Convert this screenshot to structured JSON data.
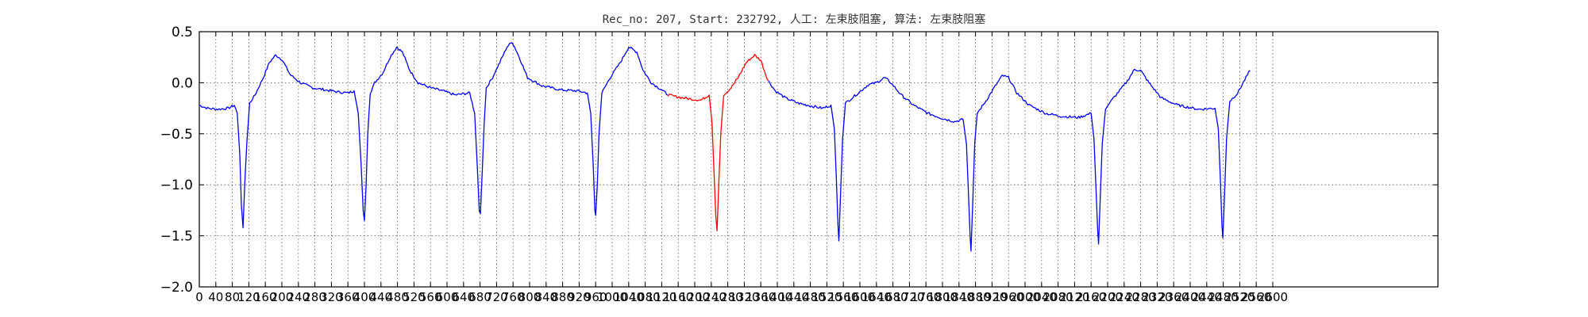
{
  "chart_data": {
    "type": "line",
    "title": "Rec_no: 207, Start: 232792, 人工: 左束肢阻塞, 算法: 左束肢阻塞",
    "xlabel": "",
    "ylabel": "",
    "xlim": [
      0,
      3000
    ],
    "ylim": [
      -2.0,
      0.5
    ],
    "grid": true,
    "x_ticks": [
      0,
      40,
      80,
      120,
      160,
      200,
      240,
      280,
      320,
      360,
      400,
      440,
      480,
      520,
      560,
      600,
      640,
      680,
      720,
      760,
      800,
      840,
      880,
      920,
      960,
      1000,
      1040,
      1080,
      1120,
      1160,
      1200,
      1240,
      1280,
      1320,
      1360,
      1400,
      1440,
      1480,
      1520,
      1560,
      1600,
      1640,
      1680,
      1720,
      1760,
      1800,
      1840,
      1880,
      1920,
      1960,
      2000,
      2040,
      2080,
      2120,
      2160,
      2200,
      2240,
      2280,
      2320,
      2360,
      2400,
      2440,
      2480,
      2520,
      2560,
      2600
    ],
    "x_tick_labels": [
      "0",
      "40",
      "80",
      "120",
      "160",
      "200",
      "240",
      "280",
      "320",
      "360",
      "400",
      "440",
      "480",
      "520",
      "560",
      "600",
      "640",
      "680",
      "720",
      "760",
      "800",
      "840",
      "880",
      "920",
      "960",
      "1000",
      "1040",
      "1080",
      "1120",
      "1160",
      "1200",
      "1240",
      "1280",
      "1320",
      "1360",
      "1400",
      "1440",
      "1480",
      "1520",
      "1560",
      "1600",
      "1640",
      "1680",
      "1720",
      "1760",
      "1800",
      "1840",
      "1880",
      "1920",
      "1960",
      "2000",
      "2040",
      "2080",
      "2120",
      "2160",
      "2200",
      "2240",
      "2280",
      "2320",
      "2360",
      "2400",
      "2440",
      "2480",
      "2520",
      "2560",
      "2600"
    ],
    "y_ticks": [
      0.5,
      0.0,
      -0.5,
      -1.0,
      -1.5,
      -2.0
    ],
    "y_tick_labels": [
      "0.5",
      "0.0",
      "−0.5",
      "−1.0",
      "−1.5",
      "−2.0"
    ],
    "series": [
      {
        "color": "#0000ff",
        "segments": [
          [
            [
              0,
              -0.22
            ],
            [
              20,
              -0.25
            ],
            [
              45,
              -0.26
            ],
            [
              70,
              -0.25
            ],
            [
              85,
              -0.22
            ],
            [
              92,
              -0.3
            ],
            [
              98,
              -0.7
            ],
            [
              102,
              -1.2
            ],
            [
              106,
              -1.42
            ],
            [
              110,
              -1.0
            ],
            [
              115,
              -0.6
            ],
            [
              122,
              -0.2
            ],
            [
              135,
              -0.12
            ],
            [
              155,
              0.05
            ],
            [
              170,
              0.2
            ],
            [
              185,
              0.27
            ],
            [
              200,
              0.23
            ],
            [
              220,
              0.08
            ],
            [
              245,
              0.0
            ],
            [
              275,
              -0.05
            ],
            [
              305,
              -0.07
            ],
            [
              335,
              -0.09
            ],
            [
              360,
              -0.1
            ],
            [
              375,
              -0.08
            ],
            [
              385,
              -0.3
            ],
            [
              392,
              -0.8
            ],
            [
              397,
              -1.25
            ],
            [
              400,
              -1.35
            ],
            [
              404,
              -1.0
            ],
            [
              408,
              -0.5
            ],
            [
              414,
              -0.1
            ],
            [
              425,
              0.0
            ],
            [
              445,
              0.1
            ],
            [
              462,
              0.25
            ],
            [
              478,
              0.35
            ],
            [
              492,
              0.3
            ],
            [
              510,
              0.12
            ],
            [
              530,
              0.0
            ],
            [
              560,
              -0.05
            ],
            [
              590,
              -0.08
            ],
            [
              620,
              -0.12
            ],
            [
              655,
              -0.1
            ],
            [
              667,
              -0.3
            ],
            [
              673,
              -0.8
            ],
            [
              678,
              -1.25
            ],
            [
              681,
              -1.28
            ],
            [
              685,
              -0.9
            ],
            [
              690,
              -0.4
            ],
            [
              695,
              -0.05
            ],
            [
              710,
              0.05
            ],
            [
              728,
              0.2
            ],
            [
              745,
              0.35
            ],
            [
              758,
              0.4
            ],
            [
              775,
              0.25
            ],
            [
              795,
              0.05
            ],
            [
              830,
              -0.03
            ],
            [
              875,
              -0.07
            ],
            [
              915,
              -0.08
            ],
            [
              940,
              -0.1
            ],
            [
              948,
              -0.3
            ],
            [
              954,
              -0.8
            ],
            [
              958,
              -1.25
            ],
            [
              960,
              -1.3
            ],
            [
              964,
              -1.0
            ],
            [
              968,
              -0.5
            ],
            [
              975,
              -0.1
            ],
            [
              995,
              0.05
            ],
            [
              1020,
              0.2
            ],
            [
              1040,
              0.35
            ],
            [
              1060,
              0.3
            ],
            [
              1075,
              0.12
            ],
            [
              1095,
              0.0
            ],
            [
              1120,
              -0.07
            ],
            [
              1135,
              -0.12
            ]
          ]
        ]
      },
      {
        "color": "#ff0000",
        "segments": [
          [
            [
              1135,
              -0.12
            ],
            [
              1160,
              -0.14
            ],
            [
              1190,
              -0.16
            ],
            [
              1215,
              -0.17
            ],
            [
              1235,
              -0.12
            ],
            [
              1242,
              -0.4
            ],
            [
              1247,
              -0.9
            ],
            [
              1251,
              -1.3
            ],
            [
              1254,
              -1.45
            ],
            [
              1258,
              -1.0
            ],
            [
              1263,
              -0.5
            ],
            [
              1270,
              -0.12
            ],
            [
              1288,
              -0.05
            ],
            [
              1305,
              0.05
            ],
            [
              1325,
              0.2
            ],
            [
              1345,
              0.27
            ],
            [
              1360,
              0.22
            ],
            [
              1372,
              0.08
            ],
            [
              1378,
              0.02
            ]
          ]
        ]
      },
      {
        "color": "#0000ff",
        "segments": [
          [
            [
              1378,
              0.02
            ],
            [
              1395,
              -0.08
            ],
            [
              1420,
              -0.15
            ],
            [
              1450,
              -0.2
            ],
            [
              1485,
              -0.23
            ],
            [
              1510,
              -0.25
            ],
            [
              1530,
              -0.22
            ],
            [
              1538,
              -0.45
            ],
            [
              1543,
              -0.95
            ],
            [
              1547,
              -1.4
            ],
            [
              1549,
              -1.55
            ],
            [
              1553,
              -1.1
            ],
            [
              1558,
              -0.55
            ],
            [
              1565,
              -0.2
            ],
            [
              1590,
              -0.12
            ],
            [
              1620,
              -0.02
            ],
            [
              1640,
              0.0
            ],
            [
              1660,
              0.05
            ],
            [
              1675,
              0.0
            ],
            [
              1700,
              -0.12
            ],
            [
              1730,
              -0.22
            ],
            [
              1765,
              -0.3
            ],
            [
              1800,
              -0.35
            ],
            [
              1830,
              -0.38
            ],
            [
              1850,
              -0.36
            ],
            [
              1858,
              -0.6
            ],
            [
              1863,
              -1.1
            ],
            [
              1867,
              -1.5
            ],
            [
              1869,
              -1.65
            ],
            [
              1873,
              -1.2
            ],
            [
              1878,
              -0.6
            ],
            [
              1884,
              -0.3
            ],
            [
              1905,
              -0.18
            ],
            [
              1925,
              -0.05
            ],
            [
              1945,
              0.07
            ],
            [
              1960,
              0.05
            ],
            [
              1980,
              -0.1
            ],
            [
              2010,
              -0.22
            ],
            [
              2050,
              -0.3
            ],
            [
              2090,
              -0.33
            ],
            [
              2130,
              -0.34
            ],
            [
              2160,
              -0.3
            ],
            [
              2167,
              -0.55
            ],
            [
              2172,
              -1.05
            ],
            [
              2176,
              -1.45
            ],
            [
              2178,
              -1.58
            ],
            [
              2182,
              -1.15
            ],
            [
              2187,
              -0.6
            ],
            [
              2195,
              -0.25
            ],
            [
              2220,
              -0.12
            ],
            [
              2245,
              0.0
            ],
            [
              2265,
              0.13
            ],
            [
              2280,
              0.12
            ],
            [
              2300,
              0.0
            ],
            [
              2330,
              -0.15
            ],
            [
              2370,
              -0.22
            ],
            [
              2420,
              -0.26
            ],
            [
              2460,
              -0.25
            ],
            [
              2468,
              -0.45
            ],
            [
              2473,
              -0.95
            ],
            [
              2477,
              -1.4
            ],
            [
              2479,
              -1.52
            ],
            [
              2483,
              -1.1
            ],
            [
              2488,
              -0.55
            ],
            [
              2496,
              -0.18
            ],
            [
              2515,
              -0.1
            ],
            [
              2535,
              0.05
            ],
            [
              2545,
              0.12
            ]
          ]
        ]
      }
    ]
  }
}
